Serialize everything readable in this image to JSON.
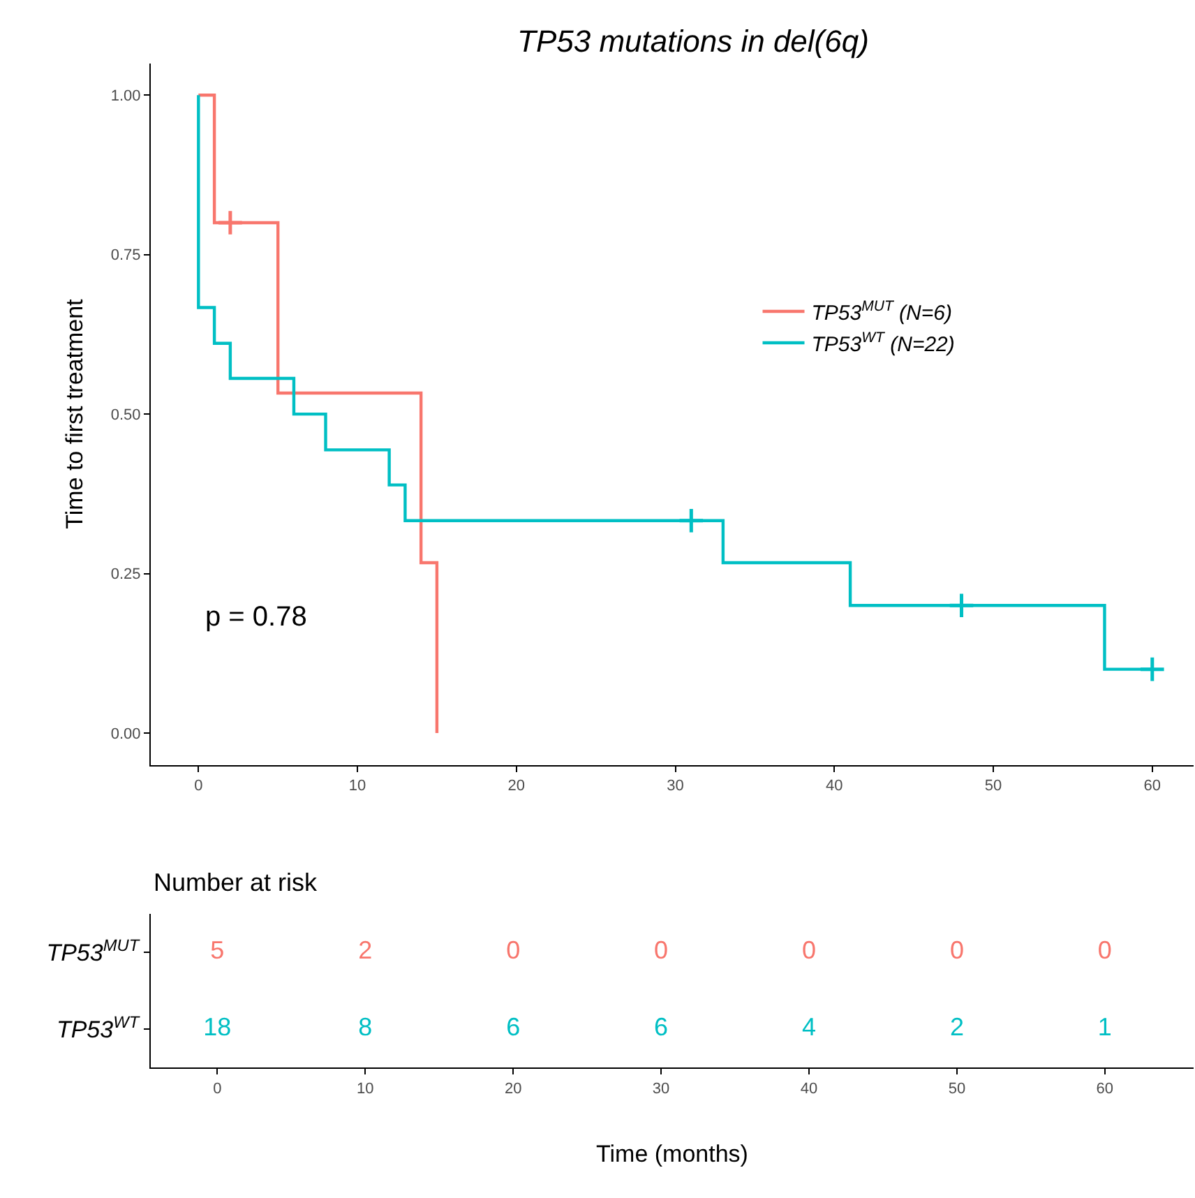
{
  "chart_data": [
    {
      "type": "step",
      "title": "TP53 mutations in del(6q)",
      "ylabel": "Time to first treatment",
      "series": [
        {
          "name": "TP53$^{MUT}$ (N=6)",
          "color": "#f8766d",
          "x": [
            0,
            1,
            5,
            14,
            15
          ],
          "values": [
            1.0,
            0.8,
            0.533,
            0.267,
            0.0
          ]
        },
        {
          "name": "TP53$^{WT}$ (N=22)",
          "color": "#00bfc4",
          "x": [
            0,
            0,
            1,
            2,
            6,
            8,
            12,
            13,
            33,
            41,
            57,
            60
          ],
          "values": [
            1.0,
            0.667,
            0.611,
            0.556,
            0.5,
            0.444,
            0.389,
            0.333,
            0.267,
            0.2,
            0.1,
            0.1
          ]
        },
        {
          "type": "scatter",
          "marker": "cross",
          "color": "#f8766d",
          "x": [
            2
          ],
          "values": [
            0.8
          ]
        },
        {
          "type": "scatter",
          "marker": "cross",
          "color": "#00bfc4",
          "x": [
            31,
            48,
            60
          ],
          "values": [
            0.333,
            0.2,
            0.1
          ]
        }
      ],
      "annotations": [
        "p = 0.78"
      ],
      "xlim": [
        -3,
        62.6
      ],
      "xticks": [
        0,
        10,
        20,
        30,
        40,
        50,
        60
      ],
      "ylim": [
        -0.05,
        1.05
      ],
      "yticks": [
        {
          "value": 0,
          "label": "0.00"
        },
        {
          "value": 0.25,
          "label": "0.25"
        },
        {
          "value": 0.5,
          "label": "0.50"
        },
        {
          "value": 0.75,
          "label": "0.75"
        },
        {
          "value": 1,
          "label": "1.00"
        }
      ],
      "legend": "right",
      "line_style": "solid"
    },
    {
      "type": "heatmap",
      "title": "Number at risk",
      "xlabel": "Time (months)",
      "categories": [
        "0",
        "10",
        "20",
        "30",
        "40",
        "50",
        "60"
      ],
      "y_categories": [
        "TP53$^{MUT}$",
        "TP53$^{WT}$"
      ],
      "colors": [
        "#f8766d",
        "#00bfc4"
      ],
      "cells": [
        [
          5,
          2,
          0,
          0,
          0,
          0,
          0
        ],
        [
          18,
          8,
          6,
          6,
          4,
          2,
          1
        ]
      ],
      "data_labels": true
    }
  ]
}
